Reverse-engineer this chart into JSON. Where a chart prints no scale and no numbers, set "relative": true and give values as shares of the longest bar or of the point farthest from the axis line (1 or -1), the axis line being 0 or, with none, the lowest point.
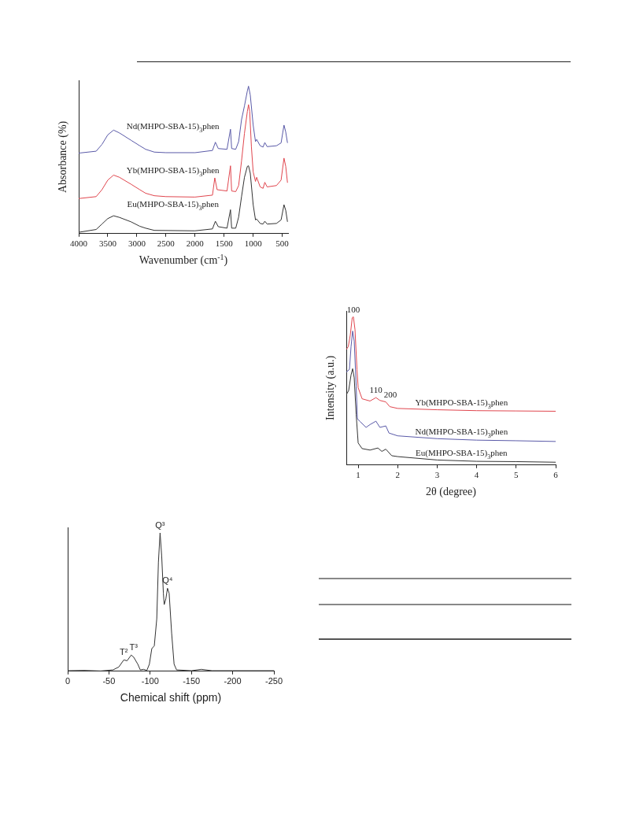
{
  "chart_data": [
    {
      "type": "line",
      "relative": true,
      "marker": "none",
      "xlabel": "Wavenumber (cm$^{-1}$)",
      "ylabel": "Absorbance (%)",
      "xlim": [
        4000,
        400
      ],
      "xticks": [
        4000,
        3500,
        3000,
        2500,
        2000,
        1500,
        1000,
        500
      ],
      "series": [
        {
          "name": "Nd(MHPO-SBA-15)$_{3}$phen",
          "color": "#5a5aa8",
          "x": [
            4000,
            3700,
            3600,
            3500,
            3400,
            3300,
            3100,
            2950,
            2850,
            2700,
            2500,
            2000,
            1700,
            1650,
            1600,
            1450,
            1390,
            1370,
            1300,
            1250,
            1200,
            1150,
            1100,
            1080,
            1050,
            1000,
            960,
            940,
            880,
            830,
            800,
            760,
            600,
            520,
            470,
            440,
            410
          ],
          "values": [
            0.546,
            0.559,
            0.605,
            0.67,
            0.702,
            0.683,
            0.633,
            0.596,
            0.572,
            0.553,
            0.549,
            0.549,
            0.564,
            0.62,
            0.577,
            0.572,
            0.708,
            0.577,
            0.572,
            0.624,
            0.773,
            0.866,
            0.968,
            1.0,
            0.94,
            0.736,
            0.624,
            0.639,
            0.596,
            0.587,
            0.618,
            0.59,
            0.596,
            0.615,
            0.736,
            0.689,
            0.615
          ]
        },
        {
          "name": "Yb(MHPO-SBA-15)$_{3}$phen",
          "color": "#e0464e",
          "x": [
            4000,
            3700,
            3600,
            3500,
            3400,
            3300,
            3100,
            2950,
            2850,
            2700,
            2500,
            2000,
            1700,
            1660,
            1620,
            1450,
            1390,
            1370,
            1300,
            1250,
            1200,
            1150,
            1100,
            1080,
            1060,
            1030,
            1000,
            960,
            940,
            880,
            830,
            800,
            760,
            600,
            520,
            470,
            440,
            410
          ],
          "values": [
            0.238,
            0.251,
            0.298,
            0.363,
            0.397,
            0.382,
            0.335,
            0.298,
            0.274,
            0.257,
            0.251,
            0.248,
            0.261,
            0.378,
            0.298,
            0.289,
            0.46,
            0.289,
            0.285,
            0.326,
            0.493,
            0.68,
            0.829,
            0.875,
            0.829,
            0.587,
            0.419,
            0.354,
            0.382,
            0.317,
            0.307,
            0.348,
            0.317,
            0.326,
            0.363,
            0.512,
            0.456,
            0.345
          ]
        },
        {
          "name": "Eu(MHPO-SBA-15)$_{3}$phen",
          "color": "#333333",
          "x": [
            4000,
            3700,
            3600,
            3500,
            3400,
            3300,
            3100,
            2950,
            2850,
            2700,
            2000,
            1700,
            1650,
            1600,
            1450,
            1390,
            1370,
            1300,
            1250,
            1200,
            1150,
            1100,
            1080,
            1050,
            1000,
            960,
            940,
            880,
            830,
            800,
            760,
            600,
            520,
            470,
            440,
            410
          ],
          "values": [
            0.009,
            0.028,
            0.065,
            0.102,
            0.121,
            0.11,
            0.08,
            0.05,
            0.037,
            0.022,
            0.019,
            0.032,
            0.084,
            0.047,
            0.037,
            0.162,
            0.037,
            0.037,
            0.112,
            0.251,
            0.382,
            0.456,
            0.46,
            0.41,
            0.196,
            0.093,
            0.099,
            0.069,
            0.065,
            0.084,
            0.065,
            0.069,
            0.093,
            0.196,
            0.158,
            0.08
          ]
        }
      ]
    },
    {
      "type": "line",
      "relative": true,
      "marker": "none",
      "xlabel": "2θ (degree)",
      "ylabel": "Intensity (a.u.)",
      "xlim": [
        0.7,
        6
      ],
      "xticks": [
        1,
        2,
        3,
        4,
        5,
        6
      ],
      "annotations": [
        {
          "text": "100",
          "x": 0.88,
          "y": 1.0
        },
        {
          "text": "110",
          "x": 1.45,
          "y": 0.455
        },
        {
          "text": "200",
          "x": 1.7,
          "y": 0.426
        }
      ],
      "series": [
        {
          "name": "Yb(MHPO-SBA-15)$_{3}$phen",
          "color": "#e0464e",
          "x": [
            0.7,
            0.75,
            0.8,
            0.85,
            0.88,
            0.92,
            0.97,
            1.0,
            1.1,
            1.3,
            1.45,
            1.55,
            1.7,
            1.8,
            2,
            3,
            4,
            5,
            6
          ],
          "values": [
            0.78,
            0.799,
            0.876,
            0.994,
            1.0,
            0.914,
            0.646,
            0.522,
            0.447,
            0.432,
            0.455,
            0.436,
            0.426,
            0.394,
            0.382,
            0.373,
            0.367,
            0.365,
            0.363
          ]
        },
        {
          "name": "Nd(MHPO-SBA-15)$_{3}$phen",
          "color": "#5a5aa8",
          "x": [
            0.7,
            0.78,
            0.82,
            0.86,
            0.9,
            0.95,
            0.98,
            1.05,
            1.2,
            1.3,
            1.45,
            1.55,
            1.7,
            1.78,
            2,
            3,
            4,
            5,
            6
          ],
          "values": [
            0.627,
            0.646,
            0.799,
            0.904,
            0.837,
            0.532,
            0.312,
            0.293,
            0.254,
            0.273,
            0.296,
            0.254,
            0.264,
            0.216,
            0.197,
            0.178,
            0.168,
            0.164,
            0.159
          ]
        },
        {
          "name": "Eu(MHPO-SBA-15)$_{3}$phen",
          "color": "#333333",
          "x": [
            0.7,
            0.76,
            0.82,
            0.86,
            0.9,
            0.95,
            1.0,
            1.1,
            1.3,
            1.5,
            1.6,
            1.7,
            1.85,
            2,
            3,
            4,
            5,
            6
          ],
          "values": [
            0.474,
            0.503,
            0.608,
            0.65,
            0.589,
            0.34,
            0.149,
            0.111,
            0.101,
            0.115,
            0.092,
            0.107,
            0.063,
            0.057,
            0.034,
            0.025,
            0.023,
            0.019
          ]
        }
      ]
    },
    {
      "type": "line",
      "relative": true,
      "marker": "none",
      "xlabel": "Chemical shift (ppm)",
      "xlim": [
        0,
        -250
      ],
      "xticks": [
        0,
        -50,
        -100,
        -150,
        -200,
        -250
      ],
      "annotations": [
        {
          "text": "Q³",
          "x": -112,
          "y": 1.0
        },
        {
          "text": "Q⁴",
          "x": -121,
          "y": 0.6
        },
        {
          "text": "T²",
          "x": -68,
          "y": 0.082
        },
        {
          "text": "T³",
          "x": -77,
          "y": 0.117
        }
      ],
      "series": [
        {
          "color": "#333333",
          "x": [
            0,
            -20,
            -40,
            -55,
            -62,
            -68,
            -72,
            -77,
            -80,
            -85,
            -88,
            -92,
            -96,
            -99,
            -102,
            -105,
            -108,
            -110,
            -112,
            -114,
            -116,
            -117,
            -119,
            -121,
            -123,
            -126,
            -129,
            -132,
            -150,
            -162,
            -175,
            -200,
            -250
          ],
          "values": [
            0.004,
            0.006,
            0.002,
            0.01,
            0.031,
            0.082,
            0.076,
            0.117,
            0.102,
            0.051,
            0.01,
            0.014,
            0.006,
            0.051,
            0.164,
            0.184,
            0.379,
            0.789,
            1.0,
            0.83,
            0.564,
            0.482,
            0.523,
            0.6,
            0.564,
            0.277,
            0.051,
            0.01,
            0.004,
            0.014,
            0.004,
            0.004,
            0.004
          ]
        }
      ]
    }
  ]
}
